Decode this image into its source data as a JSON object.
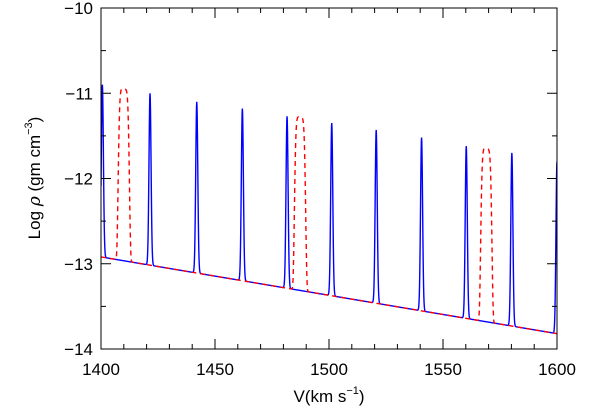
{
  "chart_data": {
    "type": "line",
    "xlabel": "V(km s",
    "xlabel_exp": "−1",
    "xlabel_close": ")",
    "ylabel_pre": "Log ",
    "ylabel_rho": "ρ",
    "ylabel_unit": " (gm cm",
    "ylabel_exp": "−3",
    "ylabel_close": ")",
    "xlim": [
      1400,
      1600
    ],
    "ylim": [
      -14,
      -10
    ],
    "xticks": [
      1400,
      1450,
      1500,
      1550,
      1600
    ],
    "yticks": [
      -14,
      -13,
      -12,
      -11,
      -10
    ],
    "grid": false,
    "baseline": {
      "x": [
        1400,
        1600
      ],
      "y": [
        -12.92,
        -13.82
      ]
    },
    "series": [
      {
        "style": "solid",
        "color": "#0000ff",
        "peaks": [
          {
            "x": 1400.6,
            "y": -10.9
          },
          {
            "x": 1421.5,
            "y": -11.0
          },
          {
            "x": 1442.0,
            "y": -11.1
          },
          {
            "x": 1462.0,
            "y": -11.18
          },
          {
            "x": 1481.6,
            "y": -11.27
          },
          {
            "x": 1501.2,
            "y": -11.35
          },
          {
            "x": 1520.7,
            "y": -11.43
          },
          {
            "x": 1540.6,
            "y": -11.52
          },
          {
            "x": 1560.2,
            "y": -11.62
          },
          {
            "x": 1580.2,
            "y": -11.7
          },
          {
            "x": 1600.0,
            "y": -11.8
          }
        ]
      },
      {
        "style": "dashed",
        "color": "#ff0000",
        "peaks": [
          {
            "x": 1410.0,
            "y": -10.95
          },
          {
            "x": 1487.3,
            "y": -11.28
          },
          {
            "x": 1569.0,
            "y": -11.65
          }
        ]
      }
    ],
    "colors": {
      "axes": "#000000",
      "solid": "#0000ff",
      "dashed": "#ff0000"
    }
  }
}
